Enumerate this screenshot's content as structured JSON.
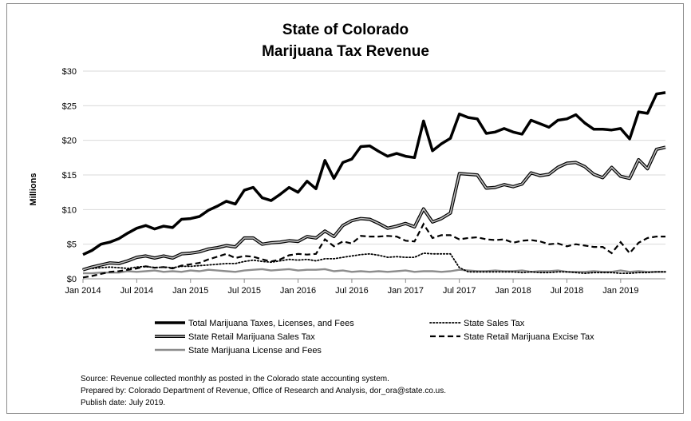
{
  "chart_data": {
    "type": "line",
    "title": [
      "State of Colorado",
      "Marijuana Tax Revenue"
    ],
    "ylabel": "Millions",
    "xlabel": "",
    "ylim": [
      0,
      30
    ],
    "xlim": [
      "2014-01",
      "2019-06"
    ],
    "y_ticks": [
      {
        "value": 0,
        "label": "$0"
      },
      {
        "value": 5,
        "label": "$5"
      },
      {
        "value": 10,
        "label": "$10"
      },
      {
        "value": 15,
        "label": "$15"
      },
      {
        "value": 20,
        "label": "$20"
      },
      {
        "value": 25,
        "label": "$25"
      },
      {
        "value": 30,
        "label": "$30"
      }
    ],
    "x_ticks": [
      {
        "value": "2014-01",
        "label": "Jan 2014"
      },
      {
        "value": "2014-07",
        "label": "Jul 2014"
      },
      {
        "value": "2015-01",
        "label": "Jan 2015"
      },
      {
        "value": "2015-07",
        "label": "Jul 2015"
      },
      {
        "value": "2016-01",
        "label": "Jan 2016"
      },
      {
        "value": "2016-07",
        "label": "Jul 2016"
      },
      {
        "value": "2017-01",
        "label": "Jan 2017"
      },
      {
        "value": "2017-07",
        "label": "Jul 2017"
      },
      {
        "value": "2018-01",
        "label": "Jan 2018"
      },
      {
        "value": "2018-07",
        "label": "Jul 2018"
      },
      {
        "value": "2019-01",
        "label": "Jan 2019"
      }
    ],
    "grid": "horizontal",
    "legend_position": "bottom",
    "x": [
      "2014-01",
      "2014-02",
      "2014-03",
      "2014-04",
      "2014-05",
      "2014-06",
      "2014-07",
      "2014-08",
      "2014-09",
      "2014-10",
      "2014-11",
      "2014-12",
      "2015-01",
      "2015-02",
      "2015-03",
      "2015-04",
      "2015-05",
      "2015-06",
      "2015-07",
      "2015-08",
      "2015-09",
      "2015-10",
      "2015-11",
      "2015-12",
      "2016-01",
      "2016-02",
      "2016-03",
      "2016-04",
      "2016-05",
      "2016-06",
      "2016-07",
      "2016-08",
      "2016-09",
      "2016-10",
      "2016-11",
      "2016-12",
      "2017-01",
      "2017-02",
      "2017-03",
      "2017-04",
      "2017-05",
      "2017-06",
      "2017-07",
      "2017-08",
      "2017-09",
      "2017-10",
      "2017-11",
      "2017-12",
      "2018-01",
      "2018-02",
      "2018-03",
      "2018-04",
      "2018-05",
      "2018-06",
      "2018-07",
      "2018-08",
      "2018-09",
      "2018-10",
      "2018-11",
      "2018-12",
      "2019-01",
      "2019-02",
      "2019-03",
      "2019-04",
      "2019-05",
      "2019-06"
    ],
    "series": [
      {
        "name": "Total Marijuana Taxes, Licenses, and Fees",
        "style": "thick",
        "color": "#000000",
        "values": [
          3.5,
          4.1,
          5.0,
          5.3,
          5.8,
          6.6,
          7.3,
          7.7,
          7.2,
          7.6,
          7.4,
          8.6,
          8.7,
          9.0,
          9.9,
          10.5,
          11.2,
          10.8,
          12.8,
          13.2,
          11.7,
          11.3,
          12.2,
          13.2,
          12.5,
          14.1,
          13.0,
          17.1,
          14.5,
          16.8,
          17.3,
          19.1,
          19.2,
          18.4,
          17.7,
          18.1,
          17.7,
          17.5,
          22.8,
          18.5,
          19.5,
          20.3,
          23.8,
          23.3,
          23.1,
          21.0,
          21.2,
          21.7,
          21.2,
          20.9,
          22.9,
          22.4,
          21.9,
          22.9,
          23.1,
          23.7,
          22.5,
          21.6,
          21.6,
          21.5,
          21.7,
          20.2,
          24.1,
          23.9,
          26.7,
          26.9
        ]
      },
      {
        "name": "State Sales Tax",
        "style": "dotted",
        "color": "#000000",
        "values": [
          1.4,
          1.5,
          1.6,
          1.7,
          1.6,
          1.5,
          1.7,
          1.8,
          1.6,
          1.7,
          1.6,
          1.8,
          1.8,
          1.9,
          2.0,
          2.1,
          2.2,
          2.2,
          2.5,
          2.7,
          2.5,
          2.4,
          2.6,
          2.8,
          2.7,
          2.8,
          2.6,
          2.9,
          2.9,
          3.1,
          3.3,
          3.5,
          3.6,
          3.4,
          3.1,
          3.2,
          3.1,
          3.1,
          3.7,
          3.6,
          3.6,
          3.6,
          1.6,
          1.0,
          1.0,
          1.0,
          1.0,
          1.0,
          1.0,
          0.9,
          1.0,
          0.9,
          0.9,
          1.0,
          1.0,
          0.9,
          0.8,
          0.9,
          0.9,
          0.9,
          0.8,
          0.8,
          0.9,
          0.9,
          1.0,
          1.0
        ]
      },
      {
        "name": "State Retail Marijuana Sales Tax",
        "style": "double",
        "color": "#000000",
        "values": [
          1.3,
          1.7,
          2.0,
          2.3,
          2.2,
          2.6,
          3.1,
          3.3,
          3.0,
          3.3,
          3.0,
          3.6,
          3.7,
          3.9,
          4.3,
          4.5,
          4.8,
          4.6,
          5.9,
          5.9,
          5.0,
          5.2,
          5.3,
          5.5,
          5.4,
          6.1,
          5.9,
          6.9,
          6.1,
          7.7,
          8.4,
          8.7,
          8.6,
          8.0,
          7.3,
          7.6,
          8.0,
          7.5,
          10.1,
          8.2,
          8.7,
          9.5,
          15.2,
          15.1,
          15.0,
          13.1,
          13.2,
          13.6,
          13.3,
          13.7,
          15.3,
          14.9,
          15.1,
          16.1,
          16.7,
          16.8,
          16.2,
          15.1,
          14.6,
          16.1,
          14.8,
          14.5,
          17.2,
          15.9,
          18.7,
          19.0
        ]
      },
      {
        "name": "State Retail Marijuana Excise Tax",
        "style": "dashed",
        "color": "#000000",
        "values": [
          0.2,
          0.4,
          0.7,
          1.0,
          1.1,
          1.3,
          1.5,
          1.8,
          1.6,
          1.7,
          1.5,
          1.9,
          2.1,
          2.3,
          2.8,
          3.2,
          3.6,
          3.0,
          3.3,
          3.2,
          2.8,
          2.5,
          2.8,
          3.4,
          3.6,
          3.5,
          3.6,
          5.7,
          4.7,
          5.4,
          5.1,
          6.2,
          6.1,
          6.1,
          6.2,
          6.1,
          5.5,
          5.4,
          7.9,
          5.9,
          6.3,
          6.3,
          5.7,
          5.9,
          6.0,
          5.7,
          5.6,
          5.7,
          5.2,
          5.5,
          5.6,
          5.4,
          5.0,
          5.1,
          4.7,
          5.0,
          4.8,
          4.6,
          4.6,
          3.7,
          5.3,
          3.7,
          5.2,
          5.9,
          6.1,
          6.1
        ]
      },
      {
        "name": "State Marijuana License and Fees",
        "style": "gray",
        "color": "#8c8c8c",
        "values": [
          0.8,
          0.8,
          0.9,
          0.9,
          0.9,
          1.1,
          1.0,
          1.1,
          1.2,
          1.0,
          1.1,
          1.0,
          1.2,
          1.1,
          1.3,
          1.2,
          1.1,
          1.0,
          1.2,
          1.3,
          1.4,
          1.2,
          1.3,
          1.4,
          1.2,
          1.3,
          1.3,
          1.4,
          1.1,
          1.2,
          1.0,
          1.1,
          1.0,
          1.1,
          1.0,
          1.1,
          1.2,
          1.0,
          1.1,
          1.1,
          1.0,
          1.1,
          1.3,
          1.2,
          1.1,
          1.1,
          1.2,
          1.1,
          1.1,
          1.2,
          1.0,
          1.1,
          1.1,
          1.2,
          1.0,
          1.0,
          1.0,
          1.1,
          1.0,
          1.0,
          1.2,
          1.0,
          1.1,
          1.0,
          1.0,
          1.0
        ]
      }
    ],
    "legend": [
      {
        "series_index": 0,
        "label": "Total Marijuana Taxes, Licenses, and Fees"
      },
      {
        "series_index": 1,
        "label": "State Sales Tax"
      },
      {
        "series_index": 2,
        "label": "State Retail Marijuana Sales Tax"
      },
      {
        "series_index": 3,
        "label": "State Retail Marijuana Excise Tax"
      },
      {
        "series_index": 4,
        "label": "State Marijuana License and Fees"
      }
    ],
    "footnotes": [
      "Source: Revenue collected monthly as posted in the Colorado state accounting system.",
      "Prepared by: Colorado Department of Revenue, Office of Research and Analysis, dor_ora@state.co.us.",
      "Publish date: July 2019."
    ]
  }
}
